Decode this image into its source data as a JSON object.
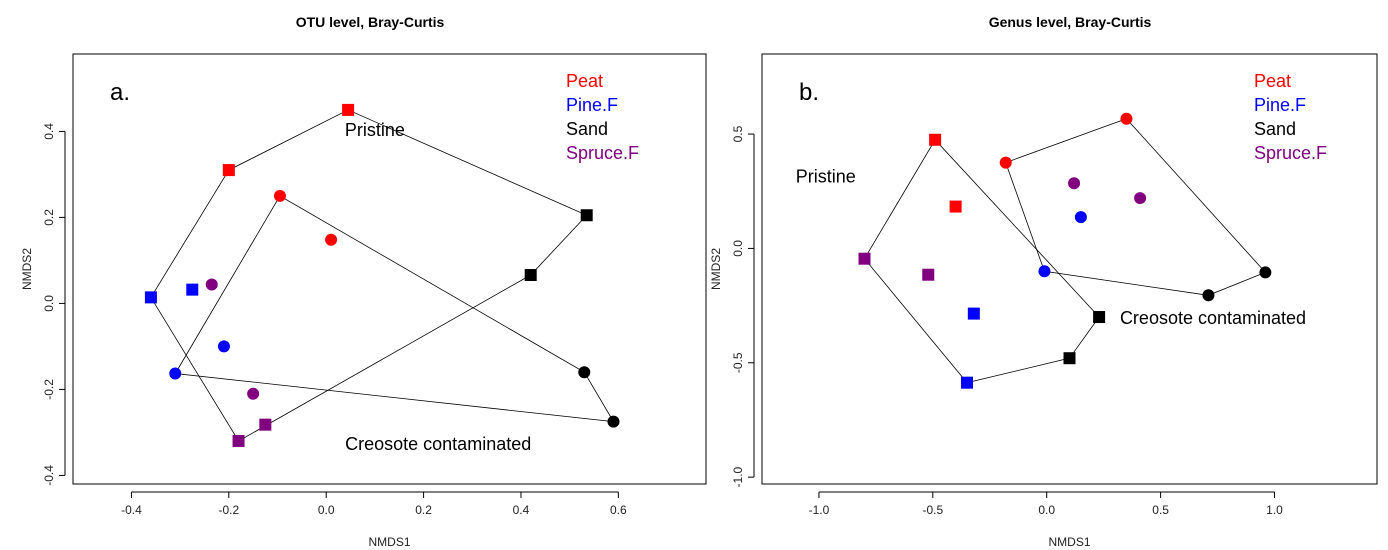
{
  "colors": {
    "Peat": "#ff0000",
    "Pine.F": "#0000ff",
    "Sand": "#000000",
    "Spruce.F": "#800080"
  },
  "chart_data": [
    {
      "type": "scatter",
      "title": "OTU level, Bray-Curtis",
      "panel_label": "a.",
      "xlabel": "NMDS1",
      "ylabel": "NMDS2",
      "xlim": [
        -0.52,
        0.78
      ],
      "ylim": [
        -0.42,
        0.58
      ],
      "xticks": [
        -0.4,
        -0.2,
        0.0,
        0.2,
        0.4,
        0.6
      ],
      "yticks": [
        -0.4,
        -0.2,
        0.0,
        0.2,
        0.4
      ],
      "legend": {
        "position": "top-right",
        "entries": [
          "Peat",
          "Pine.F",
          "Sand",
          "Spruce.F"
        ]
      },
      "points": [
        {
          "x": -0.2,
          "y": 0.31,
          "group": "Peat",
          "shape": "square"
        },
        {
          "x": 0.045,
          "y": 0.45,
          "group": "Peat",
          "shape": "square"
        },
        {
          "x": -0.095,
          "y": 0.25,
          "group": "Peat",
          "shape": "circle"
        },
        {
          "x": 0.01,
          "y": 0.148,
          "group": "Peat",
          "shape": "circle"
        },
        {
          "x": -0.36,
          "y": 0.014,
          "group": "Pine.F",
          "shape": "square"
        },
        {
          "x": -0.275,
          "y": 0.032,
          "group": "Pine.F",
          "shape": "square"
        },
        {
          "x": -0.21,
          "y": -0.1,
          "group": "Pine.F",
          "shape": "circle"
        },
        {
          "x": -0.31,
          "y": -0.163,
          "group": "Pine.F",
          "shape": "circle"
        },
        {
          "x": 0.535,
          "y": 0.205,
          "group": "Sand",
          "shape": "square"
        },
        {
          "x": 0.42,
          "y": 0.066,
          "group": "Sand",
          "shape": "square"
        },
        {
          "x": 0.53,
          "y": -0.16,
          "group": "Sand",
          "shape": "circle"
        },
        {
          "x": 0.59,
          "y": -0.275,
          "group": "Sand",
          "shape": "circle"
        },
        {
          "x": -0.235,
          "y": 0.044,
          "group": "Spruce.F",
          "shape": "circle"
        },
        {
          "x": -0.15,
          "y": -0.21,
          "group": "Spruce.F",
          "shape": "circle"
        },
        {
          "x": -0.125,
          "y": -0.282,
          "group": "Spruce.F",
          "shape": "square"
        },
        {
          "x": -0.18,
          "y": -0.32,
          "group": "Spruce.F",
          "shape": "square"
        }
      ],
      "hulls": [
        {
          "points": [
            [
              -0.36,
              0.014
            ],
            [
              -0.2,
              0.31
            ],
            [
              0.045,
              0.45
            ],
            [
              0.535,
              0.205
            ],
            [
              0.42,
              0.066
            ],
            [
              -0.18,
              -0.32
            ]
          ]
        },
        {
          "points": [
            [
              -0.31,
              -0.163
            ],
            [
              -0.095,
              0.25
            ],
            [
              0.53,
              -0.16
            ],
            [
              0.59,
              -0.275
            ]
          ]
        }
      ],
      "annotations": [
        {
          "text": "Pristine",
          "x": 0.1,
          "y": 0.4
        },
        {
          "text": "Creosote contaminated",
          "x": 0.23,
          "y": -0.33
        }
      ]
    },
    {
      "type": "scatter",
      "title": "Genus level, Bray-Curtis",
      "panel_label": "b.",
      "xlabel": "NMDS1",
      "ylabel": "NMDS2",
      "xlim": [
        -1.25,
        1.45
      ],
      "ylim": [
        -1.03,
        0.85
      ],
      "xticks": [
        -1.0,
        -0.5,
        0.0,
        0.5,
        1.0
      ],
      "yticks": [
        -1.0,
        -0.5,
        0.0,
        0.5
      ],
      "legend": {
        "position": "top-right",
        "entries": [
          "Peat",
          "Pine.F",
          "Sand",
          "Spruce.F"
        ]
      },
      "points": [
        {
          "x": -0.49,
          "y": 0.475,
          "group": "Peat",
          "shape": "square"
        },
        {
          "x": -0.4,
          "y": 0.183,
          "group": "Peat",
          "shape": "square"
        },
        {
          "x": -0.18,
          "y": 0.375,
          "group": "Peat",
          "shape": "circle"
        },
        {
          "x": 0.35,
          "y": 0.567,
          "group": "Peat",
          "shape": "circle"
        },
        {
          "x": -0.32,
          "y": -0.285,
          "group": "Pine.F",
          "shape": "square"
        },
        {
          "x": -0.35,
          "y": -0.587,
          "group": "Pine.F",
          "shape": "square"
        },
        {
          "x": 0.15,
          "y": 0.137,
          "group": "Pine.F",
          "shape": "circle"
        },
        {
          "x": -0.01,
          "y": -0.1,
          "group": "Pine.F",
          "shape": "circle"
        },
        {
          "x": 0.23,
          "y": -0.3,
          "group": "Sand",
          "shape": "square"
        },
        {
          "x": 0.1,
          "y": -0.48,
          "group": "Sand",
          "shape": "square"
        },
        {
          "x": 0.71,
          "y": -0.205,
          "group": "Sand",
          "shape": "circle"
        },
        {
          "x": 0.96,
          "y": -0.105,
          "group": "Sand",
          "shape": "circle"
        },
        {
          "x": 0.12,
          "y": 0.285,
          "group": "Spruce.F",
          "shape": "circle"
        },
        {
          "x": 0.41,
          "y": 0.22,
          "group": "Spruce.F",
          "shape": "circle"
        },
        {
          "x": -0.8,
          "y": -0.045,
          "group": "Spruce.F",
          "shape": "square"
        },
        {
          "x": -0.52,
          "y": -0.115,
          "group": "Spruce.F",
          "shape": "square"
        }
      ],
      "hulls": [
        {
          "points": [
            [
              -0.8,
              -0.045
            ],
            [
              -0.49,
              0.475
            ],
            [
              0.23,
              -0.3
            ],
            [
              0.1,
              -0.48
            ],
            [
              -0.35,
              -0.587
            ]
          ]
        },
        {
          "points": [
            [
              -0.18,
              0.375
            ],
            [
              0.35,
              0.567
            ],
            [
              0.96,
              -0.105
            ],
            [
              0.71,
              -0.205
            ],
            [
              -0.01,
              -0.1
            ]
          ]
        }
      ],
      "annotations": [
        {
          "text": "Pristine",
          "x": -0.97,
          "y": 0.31
        },
        {
          "text": "Creosote contaminated",
          "x": 0.73,
          "y": -0.31
        }
      ]
    }
  ]
}
